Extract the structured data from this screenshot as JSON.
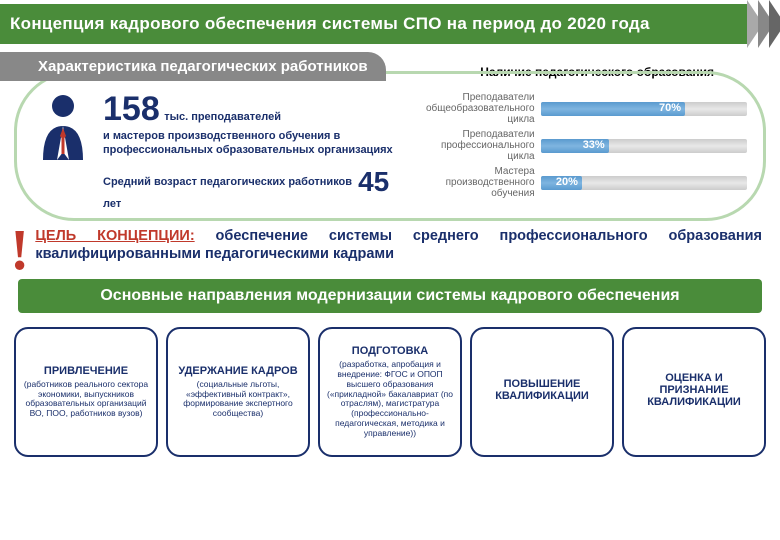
{
  "header": "Концепция кадрового обеспечения системы СПО на период до 2020 года",
  "subtitle": "Характеристика педагогических работников",
  "chart_title": "Наличие педагогического образования",
  "stats": {
    "big_number": "158",
    "big_suffix": "тыс. преподавателей",
    "desc": "и мастеров производственного обучения в профессиональных образовательных организациях",
    "age_prefix": "Средний возраст педагогических работников",
    "age_number": "45",
    "age_suffix": "лет"
  },
  "bars": [
    {
      "label": "Преподаватели общеобразовательного цикла",
      "pct": 70,
      "pct_label": "70%"
    },
    {
      "label": "Преподаватели профессионального цикла",
      "pct": 33,
      "pct_label": "33%"
    },
    {
      "label": "Мастера производственного обучения",
      "pct": 20,
      "pct_label": "20%"
    }
  ],
  "goal": {
    "label": "ЦЕЛЬ КОНЦЕПЦИИ:",
    "text": " обеспечение системы среднего профессионального образования квалифицированными педагогическими кадрами"
  },
  "directions_title": "Основные направления модернизации системы кадрового обеспечения",
  "boxes": [
    {
      "title": "ПРИВЛЕЧЕНИЕ",
      "desc": "(работников реального сектора экономики, выпускников образовательных организаций ВО, ПОО, работников вузов)"
    },
    {
      "title": "УДЕРЖАНИЕ КАДРОВ",
      "desc": "(социальные льготы, «эффективный контракт», формирование экспертного сообщества)"
    },
    {
      "title": "ПОДГОТОВКА",
      "desc": "(разработка, апробация и внедрение: ФГОС и ОПОП высшего образования («прикладной» бакалавриат (по отраслям), магистратура (профессионально-педагогическая, методика и управление))"
    },
    {
      "title": "ПОВЫШЕНИЕ КВАЛИФИКАЦИИ",
      "desc": ""
    },
    {
      "title": "ОЦЕНКА И ПРИЗНАНИЕ КВАЛИФИКАЦИИ",
      "desc": ""
    }
  ],
  "colors": {
    "green": "#4a8c3a",
    "navy": "#1a2f6b",
    "red": "#c0392b",
    "bar_fill": "#5a9acf",
    "oval_border": "#b8d8b0"
  }
}
